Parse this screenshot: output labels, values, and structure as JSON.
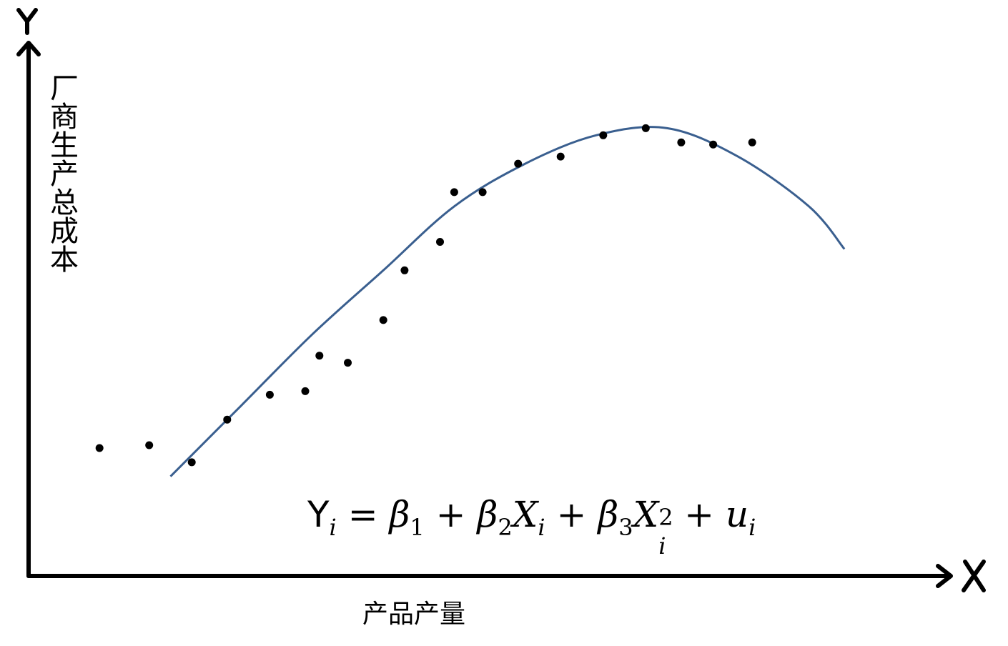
{
  "chart_data": {
    "type": "scatter",
    "title": "",
    "axis_letters": {
      "x": "X",
      "y": "Y"
    },
    "ylabel": "厂商生产总成本",
    "xlabel": "产品产量",
    "grid": false,
    "legend": "none",
    "xlim": [
      0,
      130
    ],
    "ylim": [
      0,
      75
    ],
    "points": [
      {
        "x": 10,
        "y": 18
      },
      {
        "x": 17,
        "y": 18.4
      },
      {
        "x": 23,
        "y": 16
      },
      {
        "x": 28,
        "y": 22
      },
      {
        "x": 34,
        "y": 25.5
      },
      {
        "x": 39,
        "y": 26
      },
      {
        "x": 41,
        "y": 31
      },
      {
        "x": 45,
        "y": 30
      },
      {
        "x": 50,
        "y": 36
      },
      {
        "x": 53,
        "y": 43
      },
      {
        "x": 58,
        "y": 47
      },
      {
        "x": 60,
        "y": 54
      },
      {
        "x": 64,
        "y": 54
      },
      {
        "x": 69,
        "y": 58
      },
      {
        "x": 75,
        "y": 59
      },
      {
        "x": 81,
        "y": 62
      },
      {
        "x": 87,
        "y": 63
      },
      {
        "x": 92,
        "y": 61
      },
      {
        "x": 96.5,
        "y": 60.7
      },
      {
        "x": 102,
        "y": 61
      }
    ],
    "fit_curve": {
      "model": "quadratic",
      "color": "#3a5f8f",
      "x": [
        20,
        30,
        40,
        50,
        60,
        70,
        80,
        90,
        100,
        110,
        115
      ],
      "y": [
        14,
        24,
        34,
        43,
        52,
        58,
        62,
        63,
        59,
        52,
        46
      ]
    },
    "equation": {
      "Y": "Y",
      "i": "i",
      "eq": "=",
      "beta": "β",
      "one": "1",
      "two": "2",
      "three": "3",
      "plus": "+",
      "X": "X",
      "sq": "2",
      "u": "u"
    }
  },
  "colors": {
    "axis": "#000000",
    "points": "#000000",
    "curve": "#3a5f8f",
    "background": "#ffffff"
  }
}
